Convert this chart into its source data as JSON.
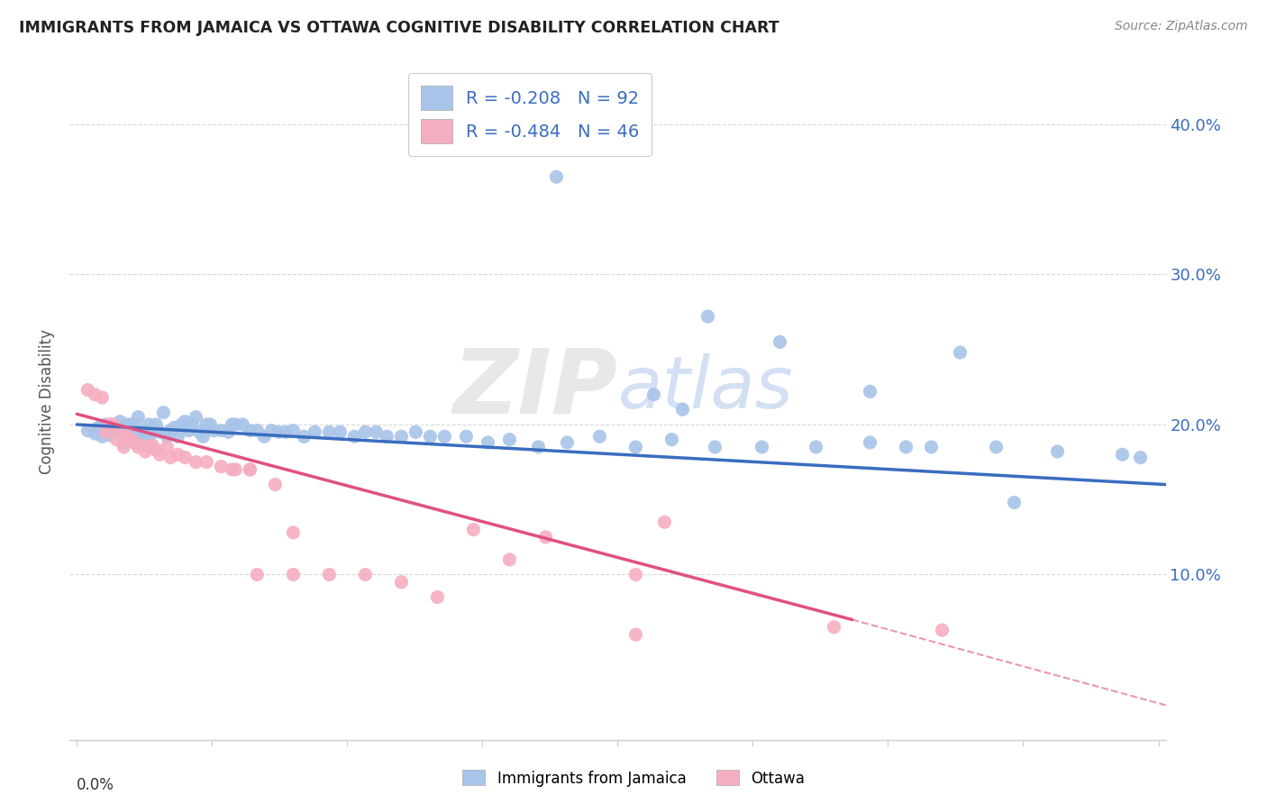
{
  "title": "IMMIGRANTS FROM JAMAICA VS OTTAWA COGNITIVE DISABILITY CORRELATION CHART",
  "source": "Source: ZipAtlas.com",
  "ylabel": "Cognitive Disability",
  "ytick_values": [
    0.1,
    0.2,
    0.3,
    0.4
  ],
  "xlim": [
    -0.002,
    0.302
  ],
  "ylim": [
    -0.01,
    0.44
  ],
  "legend_blue_r": "-0.208",
  "legend_blue_n": "92",
  "legend_pink_r": "-0.484",
  "legend_pink_n": "46",
  "blue_color": "#a8c4e8",
  "pink_color": "#f5aec0",
  "trendline_blue_color": "#3a6dbf",
  "trendline_pink_color": "#e05080",
  "watermark": "ZIPatlas",
  "blue_scatter_x": [
    0.003,
    0.005,
    0.006,
    0.007,
    0.008,
    0.009,
    0.01,
    0.01,
    0.011,
    0.012,
    0.013,
    0.013,
    0.014,
    0.015,
    0.015,
    0.016,
    0.016,
    0.017,
    0.018,
    0.018,
    0.019,
    0.02,
    0.02,
    0.021,
    0.022,
    0.022,
    0.023,
    0.024,
    0.025,
    0.026,
    0.027,
    0.028,
    0.029,
    0.03,
    0.031,
    0.032,
    0.033,
    0.034,
    0.035,
    0.036,
    0.037,
    0.038,
    0.04,
    0.042,
    0.043,
    0.044,
    0.046,
    0.048,
    0.05,
    0.052,
    0.054,
    0.056,
    0.058,
    0.06,
    0.063,
    0.066,
    0.07,
    0.073,
    0.077,
    0.08,
    0.083,
    0.086,
    0.09,
    0.094,
    0.098,
    0.102,
    0.108,
    0.114,
    0.12,
    0.128,
    0.136,
    0.145,
    0.155,
    0.165,
    0.177,
    0.19,
    0.205,
    0.22,
    0.237,
    0.255,
    0.272,
    0.29,
    0.133,
    0.175,
    0.195,
    0.245,
    0.26,
    0.16,
    0.168,
    0.22,
    0.23,
    0.295
  ],
  "blue_scatter_y": [
    0.196,
    0.194,
    0.198,
    0.192,
    0.2,
    0.193,
    0.2,
    0.195,
    0.198,
    0.202,
    0.196,
    0.188,
    0.2,
    0.195,
    0.2,
    0.2,
    0.195,
    0.205,
    0.19,
    0.196,
    0.195,
    0.192,
    0.2,
    0.196,
    0.2,
    0.196,
    0.195,
    0.208,
    0.192,
    0.196,
    0.198,
    0.192,
    0.2,
    0.202,
    0.196,
    0.2,
    0.205,
    0.195,
    0.192,
    0.2,
    0.2,
    0.196,
    0.196,
    0.195,
    0.2,
    0.2,
    0.2,
    0.196,
    0.196,
    0.192,
    0.196,
    0.195,
    0.195,
    0.196,
    0.192,
    0.195,
    0.195,
    0.195,
    0.192,
    0.195,
    0.195,
    0.192,
    0.192,
    0.195,
    0.192,
    0.192,
    0.192,
    0.188,
    0.19,
    0.185,
    0.188,
    0.192,
    0.185,
    0.19,
    0.185,
    0.185,
    0.185,
    0.188,
    0.185,
    0.185,
    0.182,
    0.18,
    0.365,
    0.272,
    0.255,
    0.248,
    0.148,
    0.22,
    0.21,
    0.222,
    0.185,
    0.178
  ],
  "pink_scatter_x": [
    0.003,
    0.005,
    0.007,
    0.008,
    0.009,
    0.01,
    0.011,
    0.012,
    0.013,
    0.014,
    0.015,
    0.016,
    0.017,
    0.018,
    0.019,
    0.02,
    0.021,
    0.022,
    0.023,
    0.025,
    0.026,
    0.028,
    0.03,
    0.033,
    0.036,
    0.04,
    0.044,
    0.048,
    0.055,
    0.06,
    0.07,
    0.08,
    0.09,
    0.1,
    0.11,
    0.12,
    0.13,
    0.155,
    0.163,
    0.21,
    0.24,
    0.155,
    0.05,
    0.06,
    0.043,
    0.048
  ],
  "pink_scatter_y": [
    0.223,
    0.22,
    0.218,
    0.195,
    0.2,
    0.2,
    0.19,
    0.195,
    0.185,
    0.192,
    0.19,
    0.188,
    0.185,
    0.186,
    0.182,
    0.185,
    0.186,
    0.183,
    0.18,
    0.185,
    0.178,
    0.18,
    0.178,
    0.175,
    0.175,
    0.172,
    0.17,
    0.17,
    0.16,
    0.128,
    0.1,
    0.1,
    0.095,
    0.085,
    0.13,
    0.11,
    0.125,
    0.1,
    0.135,
    0.065,
    0.063,
    0.06,
    0.1,
    0.1,
    0.17,
    0.17
  ],
  "blue_trend_x0": 0.0,
  "blue_trend_x1": 0.302,
  "blue_trend_y0": 0.2,
  "blue_trend_y1": 0.16,
  "pink_trend_solid_x0": 0.0,
  "pink_trend_solid_x1": 0.215,
  "pink_trend_solid_y0": 0.207,
  "pink_trend_solid_y1": 0.07,
  "pink_trend_dash_x0": 0.215,
  "pink_trend_dash_x1": 0.302,
  "pink_trend_dash_y0": 0.07,
  "pink_trend_dash_y1": 0.013,
  "grid_color": "#d8d8d8",
  "background_color": "#ffffff",
  "legend_text_color": "#3a6dbf",
  "legend_r_color": "#3a6dbf",
  "legend_n_color": "#3a6dbf"
}
